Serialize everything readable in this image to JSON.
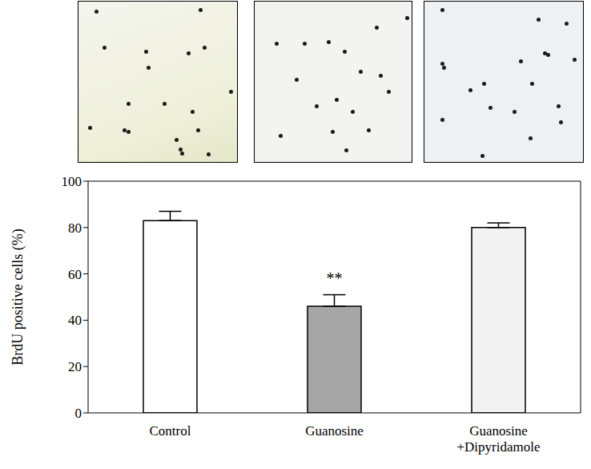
{
  "chart_data": {
    "type": "bar",
    "categories": [
      "Control",
      "Guanosine",
      "Guanosine +Dipyridamole"
    ],
    "values": [
      83,
      46,
      80
    ],
    "errors": [
      4,
      5,
      2
    ],
    "colors": [
      "#ffffff",
      "#a6a6a6",
      "#f2f2f2"
    ],
    "ylabel": "BrdU positive cells (%)",
    "ylim": [
      0,
      100
    ],
    "yticks": [
      0,
      20,
      40,
      60,
      80,
      100
    ],
    "annotations": [
      {
        "category": "Guanosine",
        "text": "**"
      }
    ]
  }
}
